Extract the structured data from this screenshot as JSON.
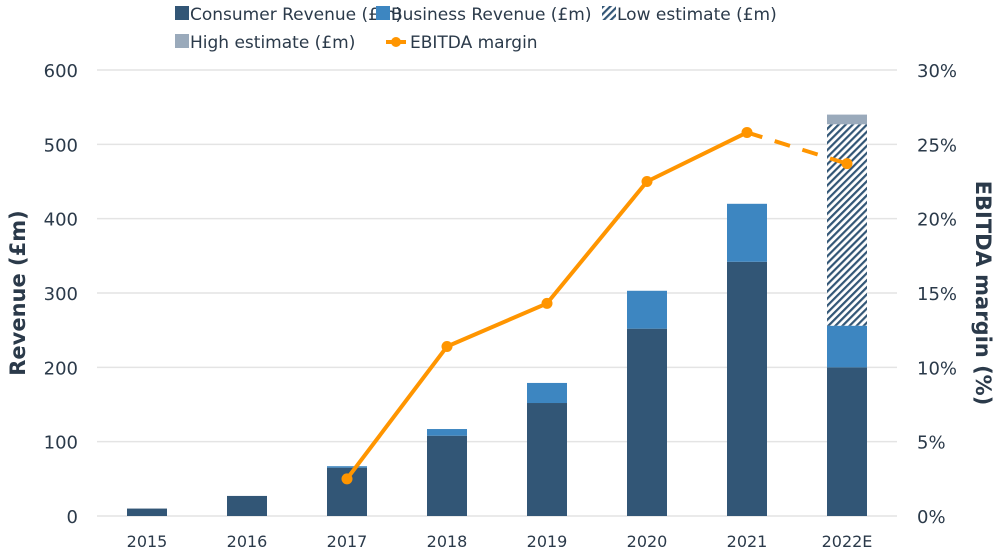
{
  "chart_data": {
    "type": "bar",
    "categories": [
      "2015",
      "2016",
      "2017",
      "2018",
      "2019",
      "2020",
      "2021",
      "2022E"
    ],
    "series": [
      {
        "name": "Consumer Revenue (£m)",
        "kind": "bar",
        "axis": "left",
        "color": "#325676",
        "values": [
          10,
          27,
          65,
          108,
          152,
          252,
          342,
          200
        ]
      },
      {
        "name": "Business Revenue (£m)",
        "kind": "bar",
        "axis": "left",
        "color": "#3d86c1",
        "values": [
          0,
          0,
          2,
          9,
          27,
          51,
          78,
          56
        ]
      },
      {
        "name": "Low estimate (£m)",
        "kind": "bar-hatched",
        "axis": "left",
        "color": "#325676",
        "values": [
          0,
          0,
          0,
          0,
          0,
          0,
          0,
          271
        ]
      },
      {
        "name": "High estimate (£m)",
        "kind": "bar",
        "axis": "left",
        "color": "#9aaabb",
        "values": [
          0,
          0,
          0,
          0,
          0,
          0,
          0,
          13
        ]
      },
      {
        "name": "EBITDA margin",
        "kind": "line",
        "axis": "right",
        "color": "#ff9500",
        "values": [
          null,
          null,
          2.5,
          11.4,
          14.3,
          22.5,
          25.8,
          23.7
        ],
        "dashed_from": "2021"
      }
    ],
    "ylabel": "Revenue (£m)",
    "y2label": "EBITDA margin (%)",
    "ylim": [
      0,
      600
    ],
    "y2lim": [
      0,
      30
    ],
    "yticks": [
      "0",
      "100",
      "200",
      "300",
      "400",
      "500",
      "600"
    ],
    "y2ticks": [
      "0%",
      "5%",
      "10%",
      "15%",
      "20%",
      "25%",
      "30%"
    ],
    "grid": true,
    "legend": "top"
  }
}
